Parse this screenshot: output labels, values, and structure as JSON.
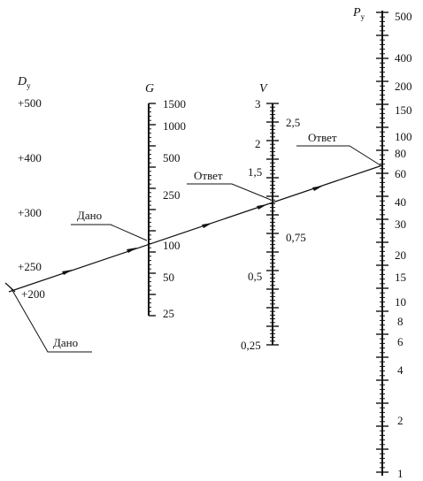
{
  "axes": {
    "d": {
      "title": "D",
      "subscript": "у",
      "labels": [
        "+500",
        "+400",
        "+300",
        "+250",
        "+200"
      ]
    },
    "g": {
      "title": "G",
      "labels": [
        "1500",
        "1000",
        "500",
        "250",
        "100",
        "50",
        "25"
      ]
    },
    "v": {
      "title": "V",
      "labels_left": [
        "3",
        "2",
        "1,5",
        "0,5",
        "0,25"
      ],
      "labels_right": [
        "2,5",
        "0,75"
      ]
    },
    "p": {
      "title": "P",
      "subscript": "у",
      "labels": [
        "500",
        "400",
        "200",
        "150",
        "100",
        "80",
        "60",
        "40",
        "30",
        "20",
        "15",
        "10",
        "8",
        "6",
        "4",
        "2",
        "1"
      ]
    }
  },
  "callouts": {
    "given_top": "Дано",
    "given_bottom": "Дано",
    "answer_v": "Ответ",
    "answer_p": "Ответ"
  },
  "colors": {
    "ink": "#111111",
    "background": "#ffffff"
  }
}
